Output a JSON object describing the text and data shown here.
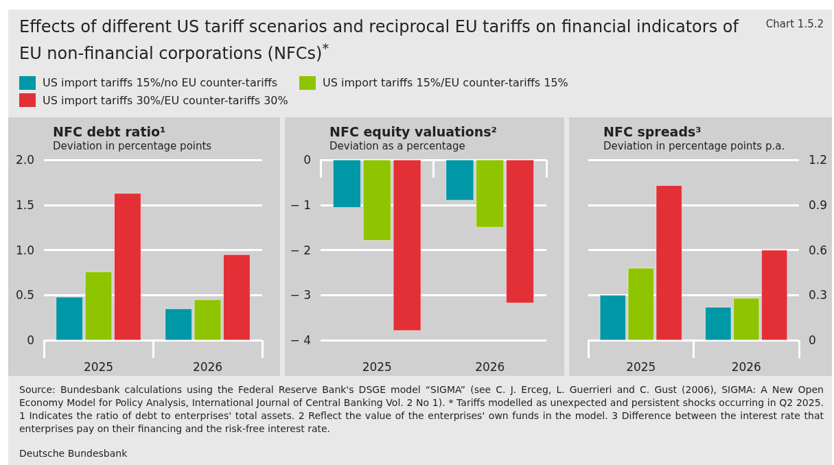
{
  "chart_data": [
    {
      "type": "bar",
      "title": "NFC debt ratio¹",
      "subtitle": "Deviation in percentage points",
      "categories": [
        "2025",
        "2026"
      ],
      "series": [
        {
          "name": "US import tariffs 15%/no EU counter-tariffs",
          "color": "#0097a7",
          "values": [
            0.48,
            0.35
          ]
        },
        {
          "name": "US import tariffs 15%/EU counter-tariffs 15%",
          "color": "#8fc400",
          "values": [
            0.76,
            0.45
          ]
        },
        {
          "name": "US import tariffs 30%/EU counter-tariffs 30%",
          "color": "#e33036",
          "values": [
            1.63,
            0.95
          ]
        }
      ],
      "ylim": [
        0,
        2
      ],
      "yticks": [
        0,
        0.5,
        {
          "value": 1,
          "label": "1.0"
        },
        1.5,
        {
          "value": 2,
          "label": "2.0"
        }
      ],
      "grid": "y",
      "legend": "top",
      "annotations": [
        "Effects of different US tariff scenarios and reciprocal EU tariffs on financial indicators of EU non-financial corporations (NFCs)$^{*}$",
        "Chart 1.5.2",
        "Source: Bundesbank calculations using the Federal Reserve Bank's DSGE model “SIGMA” (see C. J. Erceg, L. Guerrieri and C. Gust (2006), SIGMA: A New Open Economy Model for Policy Analysis, International Journal of Central Banking Vol. 2 No 1). * Tariffs modelled as unexpected and persistent shocks occurring in Q2 2025. 1 Indicates the ratio of debt to enterprises' total assets. 2 Reflect the value of the enterprises' own funds in the model. 3 Difference between the interest rate that enterprises pay on their financing and the risk-free interest rate.",
        "Deutsche Bundesbank"
      ]
    },
    {
      "type": "bar",
      "title": "NFC equity valuations²",
      "subtitle": "Deviation as a percentage",
      "categories": [
        "2025",
        "2026"
      ],
      "series": [
        {
          "color": "#0097a7",
          "values": [
            -1.06,
            -0.9
          ]
        },
        {
          "color": "#8fc400",
          "values": [
            -1.79,
            -1.5
          ]
        },
        {
          "color": "#e33036",
          "values": [
            -3.79,
            -3.18
          ]
        }
      ],
      "ylim": [
        -4,
        0
      ],
      "yticks": [
        {
          "value": -4,
          "label": "− 4"
        },
        {
          "value": -3,
          "label": "− 3"
        },
        {
          "value": -2,
          "label": "− 2"
        },
        {
          "value": -1,
          "label": "− 1"
        },
        0
      ],
      "grid": "y"
    },
    {
      "type": "bar",
      "title": "NFC spreads³",
      "subtitle": "Deviation in percentage points p.a.",
      "categories": [
        "2025",
        "2026"
      ],
      "series": [
        {
          "color": "#0097a7",
          "values": [
            0.3,
            0.22
          ],
          "axis": "y2"
        },
        {
          "color": "#8fc400",
          "values": [
            0.48,
            0.28
          ],
          "axis": "y2"
        },
        {
          "color": "#e33036",
          "values": [
            1.03,
            0.6
          ],
          "axis": "y2"
        }
      ],
      "y2lim": [
        0,
        1.2
      ],
      "y2ticks": [
        0,
        0.3,
        0.6,
        0.9,
        1.2
      ],
      "grid": "y"
    }
  ]
}
